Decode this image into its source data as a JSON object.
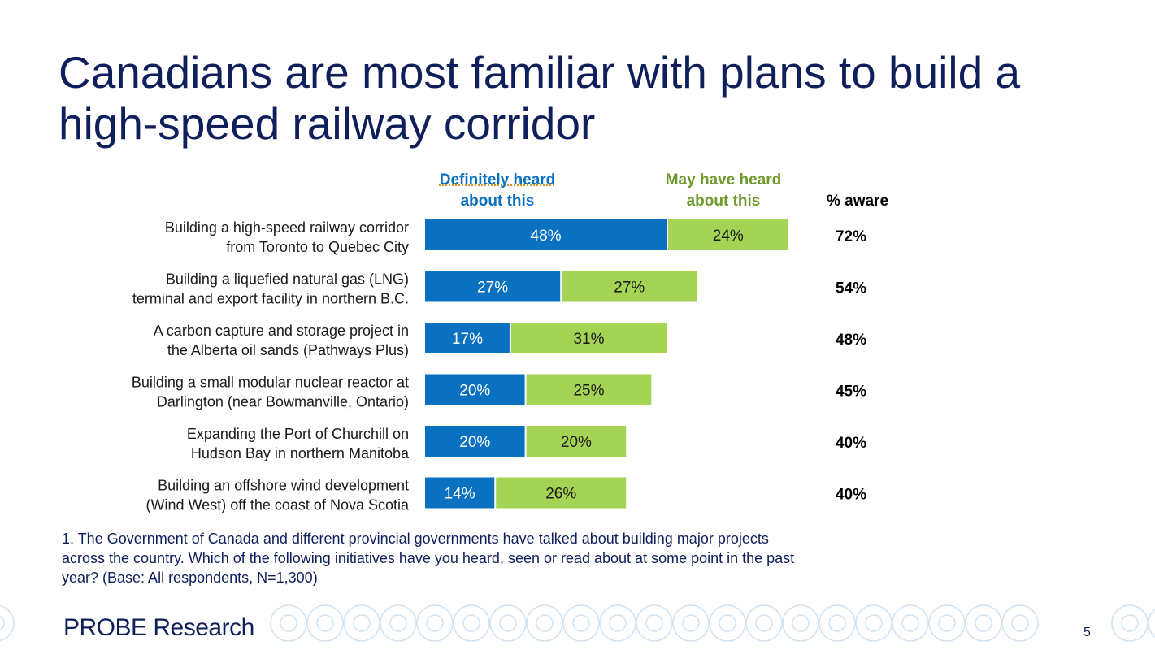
{
  "title": "Canadians are most familiar with plans to build a high-speed railway corridor",
  "legend": {
    "definitely_l1": "Definitely heard",
    "definitely_l2": "about this",
    "may_l1": "May have heard",
    "may_l2": "about this",
    "aware": "% aware"
  },
  "colors": {
    "definitely": "#0a70c0",
    "may": "#a5d354",
    "title": "#0f1f5c"
  },
  "chart_data": {
    "type": "bar",
    "orientation": "horizontal",
    "stacked": true,
    "categories": [
      [
        "Building a high-speed railway corridor",
        "from Toronto to Quebec City"
      ],
      [
        "Building a liquefied natural gas (LNG)",
        "terminal and export facility in northern B.C."
      ],
      [
        "A carbon capture and storage project in",
        "the Alberta oil sands (Pathways Plus)"
      ],
      [
        "Building a small modular nuclear reactor at",
        "Darlington (near Bowmanville, Ontario)"
      ],
      [
        "Expanding the Port of Churchill on",
        "Hudson Bay in northern Manitoba"
      ],
      [
        "Building an offshore wind development",
        "(Wind West) off the coast of Nova Scotia"
      ]
    ],
    "series": [
      {
        "name": "Definitely heard about this",
        "values": [
          48,
          27,
          17,
          20,
          20,
          14
        ]
      },
      {
        "name": "May have heard about this",
        "values": [
          24,
          27,
          31,
          25,
          20,
          26
        ]
      }
    ],
    "totals_label": "% aware",
    "totals": [
      72,
      54,
      48,
      45,
      40,
      40
    ],
    "grid": false,
    "legend_placement": "top"
  },
  "footnote": "1. The Government of Canada and different provincial governments have talked about building major projects across the country. Which of the following initiatives have you heard, seen or read about at some point in the past year? (Base: All respondents, N=1,300)",
  "logo": "PROBE Research",
  "page_number": "5"
}
